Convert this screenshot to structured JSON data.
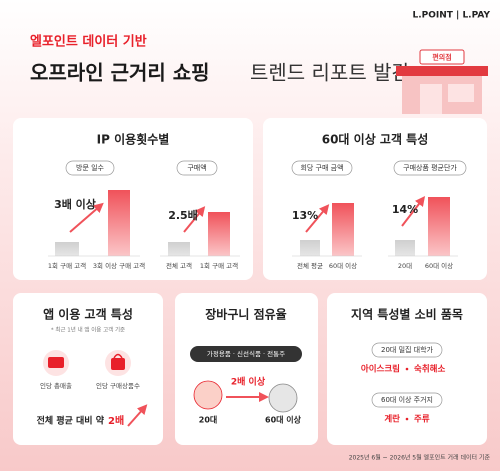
{
  "header": {
    "logo": "L.POINT | L.PAY",
    "kicker": "엘포인트 데이터 기반",
    "title_bold": "오프라인 근거리 쇼핑",
    "title_rest": "트렌드 리포트 발간",
    "store_sign": "편의점"
  },
  "usage": {
    "title": "IP 이용횟수별",
    "groups": [
      {
        "label": "방문 일수",
        "callout": "3배 이상",
        "bars": [
          "1회 구매 고객",
          "3회 이상 구매 고객"
        ]
      },
      {
        "label": "구매액",
        "callout": "2.5배",
        "bars": [
          "전체 고객",
          "1회 구매 고객"
        ]
      }
    ]
  },
  "senior": {
    "title": "60대 이상 고객 특성",
    "groups": [
      {
        "label": "회당 구매 금액",
        "callout": "13%",
        "bars": [
          "전체 평균",
          "60대 이상"
        ]
      },
      {
        "label": "구매상품 평균단가",
        "callout": "14%",
        "bars": [
          "20대",
          "60대 이상"
        ]
      }
    ]
  },
  "app": {
    "title": "앱 이용 고객 특성",
    "note": "* 최근 1년 내 앱 이용 고객 기준",
    "items": [
      "인당 총매출",
      "인당 구매상품수"
    ],
    "summary": "전체 평균 대비 약",
    "highlight": "2배"
  },
  "basket": {
    "title": "장바구니 점유율",
    "categories": "가정용품 · 신선식품 · 전통주",
    "callout": "2배 이상",
    "from": "20대",
    "to": "60대 이상"
  },
  "region": {
    "title": "지역 특성별 소비 품목",
    "areas": [
      {
        "label": "20대 밀집 대학가",
        "items": [
          "아이스크림",
          "숙취해소"
        ]
      },
      {
        "label": "60대 이상 주거지",
        "items": [
          "계란",
          "주류"
        ]
      }
    ]
  },
  "footer": "2025년 6월 ~ 2026년 5월 엘포인트 거래 데이터 기준"
}
